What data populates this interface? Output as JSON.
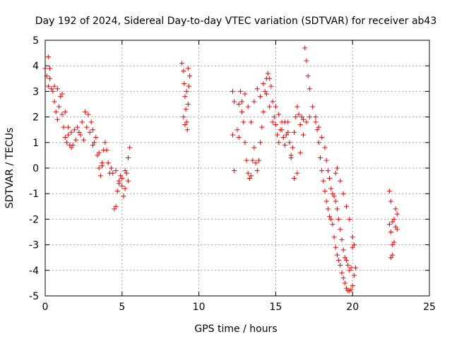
{
  "chart_data": {
    "type": "scatter",
    "title": "Day 192 of 2024, Sidereal Day-to-day VTEC variation (SDTVAR) for receiver ab43",
    "xlabel": "GPS time / hours",
    "ylabel": "SDTVAR / TECUs",
    "xlim": [
      0,
      25
    ],
    "ylim": [
      -5,
      5
    ],
    "xticks": [
      0,
      5,
      10,
      15,
      20,
      25
    ],
    "yticks": [
      -5,
      -4,
      -3,
      -2,
      -1,
      0,
      1,
      2,
      3,
      4,
      5
    ],
    "grid": true,
    "marker": "+",
    "color": "#ff0000",
    "series": [
      {
        "name": "ab43",
        "segments": [
          [
            [
              0.0,
              3.9
            ],
            [
              0.1,
              3.6
            ],
            [
              0.2,
              3.2
            ],
            [
              0.3,
              3.5
            ],
            [
              0.4,
              3.1
            ],
            [
              0.5,
              3.0
            ],
            [
              0.6,
              2.6
            ],
            [
              0.7,
              2.2
            ],
            [
              0.8,
              1.9
            ],
            [
              0.9,
              2.4
            ],
            [
              1.0,
              2.8
            ],
            [
              1.1,
              2.1
            ],
            [
              1.2,
              1.6
            ],
            [
              1.3,
              1.2
            ],
            [
              1.4,
              1.0
            ],
            [
              1.5,
              1.3
            ],
            [
              1.6,
              0.9
            ],
            [
              1.7,
              0.8
            ],
            [
              1.8,
              0.9
            ],
            [
              2.0,
              1.1
            ],
            [
              2.2,
              1.4
            ],
            [
              2.4,
              1.8
            ],
            [
              2.6,
              2.2
            ],
            [
              2.8,
              2.1
            ],
            [
              3.0,
              1.8
            ],
            [
              3.1,
              1.5
            ],
            [
              3.2,
              1.0
            ],
            [
              3.4,
              0.5
            ],
            [
              3.5,
              0.0
            ],
            [
              3.6,
              -0.3
            ],
            [
              3.7,
              0.1
            ],
            [
              3.8,
              0.7
            ],
            [
              3.9,
              1.0
            ],
            [
              4.0,
              0.7
            ],
            [
              4.1,
              0.2
            ],
            [
              4.2,
              -0.2
            ],
            [
              4.4,
              -0.2
            ],
            [
              4.5,
              -1.6
            ],
            [
              4.6,
              -1.5
            ],
            [
              4.7,
              -0.9
            ],
            [
              4.8,
              -0.5
            ],
            [
              4.9,
              -0.3
            ],
            [
              5.0,
              -0.7
            ],
            [
              5.1,
              -1.1
            ],
            [
              5.2,
              -0.8
            ],
            [
              5.3,
              -0.2
            ],
            [
              5.4,
              0.4
            ],
            [
              5.5,
              0.8
            ]
          ],
          [
            [
              0.2,
              4.35
            ],
            [
              0.3,
              3.9
            ],
            [
              0.6,
              3.2
            ],
            [
              0.8,
              3.1
            ],
            [
              1.1,
              2.9
            ],
            [
              1.3,
              2.2
            ],
            [
              1.5,
              1.6
            ],
            [
              1.7,
              1.4
            ],
            [
              1.9,
              1.5
            ],
            [
              2.1,
              1.6
            ],
            [
              2.3,
              1.3
            ],
            [
              2.5,
              1.1
            ],
            [
              2.7,
              1.6
            ],
            [
              2.9,
              1.4
            ],
            [
              3.1,
              0.9
            ],
            [
              3.3,
              1.2
            ],
            [
              3.5,
              0.6
            ],
            [
              3.7,
              0.2
            ],
            [
              4.3,
              0.0
            ],
            [
              4.6,
              -0.1
            ],
            [
              4.8,
              -0.6
            ],
            [
              5.0,
              -0.4
            ],
            [
              5.2,
              -0.1
            ],
            [
              5.4,
              -0.5
            ]
          ],
          [
            [
              8.9,
              4.1
            ],
            [
              9.0,
              3.8
            ],
            [
              9.05,
              3.3
            ],
            [
              9.1,
              2.8
            ],
            [
              9.15,
              2.3
            ],
            [
              9.2,
              1.8
            ],
            [
              9.25,
              1.5
            ],
            [
              9.3,
              2.5
            ],
            [
              9.35,
              3.2
            ],
            [
              9.4,
              3.6
            ],
            [
              9.0,
              2.0
            ],
            [
              9.1,
              1.7
            ],
            [
              9.2,
              3.0
            ],
            [
              9.3,
              3.9
            ]
          ],
          [
            [
              12.2,
              3.0
            ],
            [
              12.3,
              2.6
            ],
            [
              12.2,
              1.3
            ],
            [
              12.3,
              -0.1
            ],
            [
              12.5,
              1.5
            ],
            [
              12.6,
              2.5
            ],
            [
              12.7,
              3.0
            ],
            [
              12.8,
              2.2
            ],
            [
              12.9,
              1.8
            ],
            [
              13.0,
              1.0
            ],
            [
              13.1,
              0.3
            ],
            [
              13.2,
              -0.2
            ],
            [
              13.3,
              -0.4
            ],
            [
              13.4,
              -0.3
            ],
            [
              13.5,
              0.3
            ],
            [
              13.6,
              0.8
            ],
            [
              13.7,
              0.2
            ],
            [
              13.8,
              -0.1
            ],
            [
              13.9,
              0.3
            ],
            [
              14.0,
              1.0
            ],
            [
              14.1,
              1.6
            ],
            [
              14.2,
              2.2
            ],
            [
              14.3,
              3.0
            ],
            [
              14.4,
              3.5
            ],
            [
              14.5,
              3.7
            ],
            [
              14.6,
              3.5
            ],
            [
              14.7,
              3.2
            ],
            [
              14.8,
              2.6
            ],
            [
              14.9,
              2.0
            ],
            [
              15.0,
              1.7
            ],
            [
              15.1,
              1.3
            ],
            [
              15.2,
              1.0
            ],
            [
              15.3,
              1.5
            ],
            [
              15.4,
              1.8
            ],
            [
              15.5,
              1.2
            ],
            [
              15.6,
              0.9
            ],
            [
              15.7,
              1.3
            ],
            [
              15.8,
              1.8
            ],
            [
              15.9,
              1.0
            ],
            [
              16.0,
              0.5
            ],
            [
              16.1,
              0.8
            ],
            [
              16.2,
              1.4
            ],
            [
              16.3,
              2.0
            ],
            [
              16.4,
              2.4
            ],
            [
              16.5,
              2.1
            ],
            [
              16.6,
              1.7
            ],
            [
              16.7,
              2.0
            ],
            [
              16.8,
              1.9
            ],
            [
              16.9,
              4.7
            ],
            [
              17.0,
              4.2
            ],
            [
              17.1,
              3.6
            ],
            [
              17.2,
              3.1
            ]
          ],
          [
            [
              12.6,
              1.2
            ],
            [
              12.8,
              2.6
            ],
            [
              13.0,
              2.9
            ],
            [
              13.2,
              2.4
            ],
            [
              13.4,
              1.8
            ],
            [
              13.6,
              2.6
            ],
            [
              13.8,
              3.1
            ],
            [
              14.0,
              2.8
            ],
            [
              14.2,
              3.3
            ],
            [
              14.4,
              2.9
            ],
            [
              14.6,
              2.4
            ],
            [
              14.8,
              1.8
            ],
            [
              15.0,
              2.4
            ],
            [
              15.2,
              2.1
            ],
            [
              15.4,
              1.5
            ],
            [
              15.6,
              1.8
            ],
            [
              15.8,
              1.4
            ],
            [
              16.0,
              0.4
            ],
            [
              16.2,
              -0.4
            ],
            [
              16.4,
              -0.2
            ],
            [
              16.6,
              0.6
            ],
            [
              16.8,
              1.3
            ],
            [
              17.0,
              1.8
            ],
            [
              17.2,
              2.0
            ],
            [
              17.4,
              2.4
            ],
            [
              17.6,
              2.0
            ],
            [
              17.7,
              1.5
            ],
            [
              17.8,
              1.0
            ],
            [
              17.9,
              0.4
            ],
            [
              18.0,
              -0.1
            ],
            [
              18.1,
              -0.5
            ],
            [
              18.2,
              -0.9
            ],
            [
              18.3,
              -1.3
            ],
            [
              18.4,
              -1.6
            ],
            [
              18.5,
              -1.9
            ],
            [
              18.6,
              -2.0
            ],
            [
              18.7,
              -2.2
            ],
            [
              18.8,
              -2.7
            ],
            [
              18.9,
              -3.1
            ],
            [
              19.0,
              -3.4
            ],
            [
              19.1,
              -3.6
            ],
            [
              19.2,
              -3.8
            ],
            [
              19.3,
              -4.1
            ],
            [
              19.4,
              -4.3
            ],
            [
              19.5,
              -4.5
            ],
            [
              19.6,
              -4.7
            ],
            [
              19.7,
              -4.8
            ],
            [
              19.8,
              -4.8
            ],
            [
              19.9,
              -4.75
            ],
            [
              20.0,
              -4.6
            ],
            [
              20.1,
              -4.2
            ],
            [
              20.2,
              -3.9
            ]
          ],
          [
            [
              17.6,
              1.8
            ],
            [
              17.8,
              1.6
            ],
            [
              18.0,
              1.2
            ],
            [
              18.2,
              0.8
            ],
            [
              18.3,
              0.3
            ],
            [
              18.4,
              -0.1
            ],
            [
              18.5,
              -0.4
            ],
            [
              18.6,
              -0.8
            ],
            [
              18.7,
              -1.0
            ],
            [
              18.8,
              -1.1
            ],
            [
              18.9,
              -1.3
            ],
            [
              19.0,
              -1.6
            ],
            [
              19.1,
              -2.0
            ],
            [
              19.2,
              -2.4
            ],
            [
              19.3,
              -2.8
            ],
            [
              19.4,
              -3.2
            ],
            [
              19.5,
              -3.5
            ],
            [
              19.6,
              -3.6
            ],
            [
              19.7,
              -3.8
            ],
            [
              19.8,
              -4.0
            ],
            [
              19.9,
              -3.9
            ],
            [
              20.0,
              -3.1
            ],
            [
              20.1,
              -3.0
            ],
            [
              18.9,
              -0.2
            ],
            [
              19.0,
              0.0
            ],
            [
              19.2,
              -0.5
            ],
            [
              19.4,
              -1.0
            ],
            [
              19.6,
              -1.5
            ],
            [
              19.8,
              -2.0
            ],
            [
              20.0,
              -2.7
            ]
          ],
          [
            [
              22.4,
              -0.9
            ],
            [
              22.5,
              -1.3
            ],
            [
              22.4,
              -2.2
            ],
            [
              22.5,
              -2.5
            ],
            [
              22.6,
              -3.0
            ],
            [
              22.5,
              -3.5
            ],
            [
              22.6,
              -3.4
            ],
            [
              22.7,
              -2.9
            ],
            [
              22.8,
              -2.3
            ],
            [
              22.9,
              -1.8
            ],
            [
              22.8,
              -1.6
            ],
            [
              22.7,
              -2.0
            ],
            [
              22.6,
              -2.1
            ],
            [
              22.9,
              -2.4
            ]
          ]
        ]
      }
    ]
  }
}
